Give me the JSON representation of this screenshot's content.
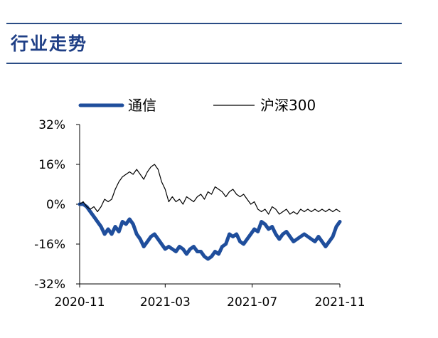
{
  "header": {
    "title": "行业走势"
  },
  "chart_data": {
    "type": "line",
    "title": "",
    "xlabel": "",
    "ylabel": "",
    "ylim": [
      -32,
      32
    ],
    "yticks": [
      "32%",
      "16%",
      "0%",
      "-16%",
      "-32%"
    ],
    "ytick_values": [
      32,
      16,
      0,
      -16,
      -32
    ],
    "xlim": [
      "2020-11-01",
      "2021-11-01"
    ],
    "xticks": [
      "2020-11",
      "2021-03",
      "2021-07",
      "2021-11"
    ],
    "xtick_values": [
      "2020-11-01",
      "2021-03-01",
      "2021-07-01",
      "2021-11-01"
    ],
    "legend": "top",
    "grid": false,
    "series": [
      {
        "name": "通信",
        "color": "#1f4e9c",
        "points": [
          [
            "2020-11-01",
            0
          ],
          [
            "2020-11-06",
            0
          ],
          [
            "2020-11-11",
            -1
          ],
          [
            "2020-11-16",
            -3
          ],
          [
            "2020-11-21",
            -5
          ],
          [
            "2020-11-26",
            -7
          ],
          [
            "2020-12-01",
            -9
          ],
          [
            "2020-12-06",
            -12
          ],
          [
            "2020-12-11",
            -10
          ],
          [
            "2020-12-16",
            -12
          ],
          [
            "2020-12-21",
            -9
          ],
          [
            "2020-12-26",
            -11
          ],
          [
            "2020-12-31",
            -7
          ],
          [
            "2021-01-05",
            -8
          ],
          [
            "2021-01-10",
            -6
          ],
          [
            "2021-01-15",
            -8
          ],
          [
            "2021-01-20",
            -12
          ],
          [
            "2021-01-25",
            -14
          ],
          [
            "2021-01-30",
            -17
          ],
          [
            "2021-02-04",
            -15
          ],
          [
            "2021-02-09",
            -13
          ],
          [
            "2021-02-14",
            -12
          ],
          [
            "2021-02-19",
            -14
          ],
          [
            "2021-02-24",
            -16
          ],
          [
            "2021-03-01",
            -18
          ],
          [
            "2021-03-06",
            -17
          ],
          [
            "2021-03-11",
            -18
          ],
          [
            "2021-03-16",
            -19
          ],
          [
            "2021-03-21",
            -17
          ],
          [
            "2021-03-26",
            -18
          ],
          [
            "2021-03-31",
            -20
          ],
          [
            "2021-04-05",
            -18
          ],
          [
            "2021-04-10",
            -17
          ],
          [
            "2021-04-15",
            -19
          ],
          [
            "2021-04-20",
            -19
          ],
          [
            "2021-04-25",
            -21
          ],
          [
            "2021-04-30",
            -22
          ],
          [
            "2021-05-05",
            -21
          ],
          [
            "2021-05-10",
            -19
          ],
          [
            "2021-05-15",
            -20
          ],
          [
            "2021-05-20",
            -17
          ],
          [
            "2021-05-25",
            -16
          ],
          [
            "2021-05-30",
            -12
          ],
          [
            "2021-06-04",
            -13
          ],
          [
            "2021-06-09",
            -12
          ],
          [
            "2021-06-14",
            -15
          ],
          [
            "2021-06-19",
            -16
          ],
          [
            "2021-06-24",
            -14
          ],
          [
            "2021-06-29",
            -12
          ],
          [
            "2021-07-04",
            -10
          ],
          [
            "2021-07-09",
            -11
          ],
          [
            "2021-07-14",
            -7
          ],
          [
            "2021-07-19",
            -8
          ],
          [
            "2021-07-24",
            -10
          ],
          [
            "2021-07-29",
            -9
          ],
          [
            "2021-08-03",
            -12
          ],
          [
            "2021-08-08",
            -14
          ],
          [
            "2021-08-13",
            -12
          ],
          [
            "2021-08-18",
            -11
          ],
          [
            "2021-08-23",
            -13
          ],
          [
            "2021-08-28",
            -15
          ],
          [
            "2021-09-02",
            -14
          ],
          [
            "2021-09-07",
            -13
          ],
          [
            "2021-09-12",
            -12
          ],
          [
            "2021-09-17",
            -13
          ],
          [
            "2021-09-22",
            -14
          ],
          [
            "2021-09-27",
            -15
          ],
          [
            "2021-10-02",
            -13
          ],
          [
            "2021-10-07",
            -15
          ],
          [
            "2021-10-12",
            -17
          ],
          [
            "2021-10-17",
            -15
          ],
          [
            "2021-10-22",
            -13
          ],
          [
            "2021-10-27",
            -9
          ],
          [
            "2021-11-01",
            -7
          ]
        ]
      },
      {
        "name": "沪深300",
        "color": "#000000",
        "points": [
          [
            "2020-11-01",
            0
          ],
          [
            "2020-11-06",
            1
          ],
          [
            "2020-11-11",
            -1
          ],
          [
            "2020-11-16",
            -2
          ],
          [
            "2020-11-21",
            -1
          ],
          [
            "2020-11-26",
            -3
          ],
          [
            "2020-12-01",
            -1
          ],
          [
            "2020-12-06",
            2
          ],
          [
            "2020-12-11",
            1
          ],
          [
            "2020-12-16",
            2
          ],
          [
            "2020-12-21",
            6
          ],
          [
            "2020-12-26",
            9
          ],
          [
            "2020-12-31",
            11
          ],
          [
            "2021-01-05",
            12
          ],
          [
            "2021-01-10",
            13
          ],
          [
            "2021-01-15",
            12
          ],
          [
            "2021-01-20",
            14
          ],
          [
            "2021-01-25",
            12
          ],
          [
            "2021-01-30",
            10
          ],
          [
            "2021-02-04",
            13
          ],
          [
            "2021-02-09",
            15
          ],
          [
            "2021-02-14",
            16
          ],
          [
            "2021-02-19",
            14
          ],
          [
            "2021-02-24",
            9
          ],
          [
            "2021-03-01",
            6
          ],
          [
            "2021-03-06",
            1
          ],
          [
            "2021-03-11",
            3
          ],
          [
            "2021-03-16",
            1
          ],
          [
            "2021-03-21",
            2
          ],
          [
            "2021-03-26",
            0
          ],
          [
            "2021-03-31",
            3
          ],
          [
            "2021-04-05",
            2
          ],
          [
            "2021-04-10",
            1
          ],
          [
            "2021-04-15",
            3
          ],
          [
            "2021-04-20",
            4
          ],
          [
            "2021-04-25",
            2
          ],
          [
            "2021-04-30",
            5
          ],
          [
            "2021-05-05",
            4
          ],
          [
            "2021-05-10",
            7
          ],
          [
            "2021-05-15",
            6
          ],
          [
            "2021-05-20",
            5
          ],
          [
            "2021-05-25",
            3
          ],
          [
            "2021-05-30",
            5
          ],
          [
            "2021-06-04",
            6
          ],
          [
            "2021-06-09",
            4
          ],
          [
            "2021-06-14",
            3
          ],
          [
            "2021-06-19",
            4
          ],
          [
            "2021-06-24",
            2
          ],
          [
            "2021-06-29",
            0
          ],
          [
            "2021-07-04",
            1
          ],
          [
            "2021-07-09",
            -2
          ],
          [
            "2021-07-14",
            -3
          ],
          [
            "2021-07-19",
            -2
          ],
          [
            "2021-07-24",
            -4
          ],
          [
            "2021-07-29",
            -1
          ],
          [
            "2021-08-03",
            -2
          ],
          [
            "2021-08-08",
            -4
          ],
          [
            "2021-08-13",
            -3
          ],
          [
            "2021-08-18",
            -2
          ],
          [
            "2021-08-23",
            -4
          ],
          [
            "2021-08-28",
            -3
          ],
          [
            "2021-09-02",
            -4
          ],
          [
            "2021-09-07",
            -2
          ],
          [
            "2021-09-12",
            -3
          ],
          [
            "2021-09-17",
            -2
          ],
          [
            "2021-09-22",
            -3
          ],
          [
            "2021-09-27",
            -2
          ],
          [
            "2021-10-02",
            -3
          ],
          [
            "2021-10-07",
            -2
          ],
          [
            "2021-10-12",
            -3
          ],
          [
            "2021-10-17",
            -2
          ],
          [
            "2021-10-22",
            -3
          ],
          [
            "2021-10-27",
            -2
          ],
          [
            "2021-11-01",
            -3
          ]
        ]
      }
    ]
  }
}
